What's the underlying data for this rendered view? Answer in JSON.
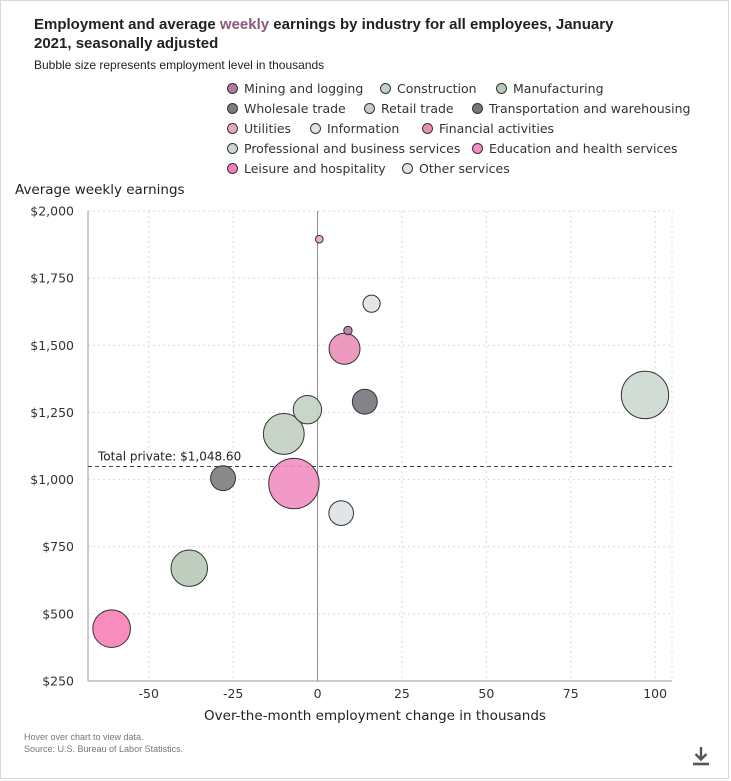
{
  "title_prefix": "Employment and average ",
  "title_accent": "weekly",
  "title_suffix": " earnings by industry for all employees, January 2021, seasonally adjusted",
  "subtitle": "Bubble size represents employment level in thousands",
  "notes": {
    "hover": "Hover over chart to view data.",
    "source": "Source: U.S. Bureau of Labor Statistics."
  },
  "download_icon": "download-icon",
  "chart_data": {
    "type": "scatter",
    "xlabel": "Over-the-month employment change in thousands",
    "ylabel": "Average weekly earnings",
    "xlim": [
      -68,
      105
    ],
    "ylim": [
      250,
      2000
    ],
    "xticks": [
      -50,
      -25,
      0,
      25,
      50,
      75,
      100
    ],
    "yticks": [
      250,
      500,
      750,
      1000,
      1250,
      1500,
      1750,
      2000
    ],
    "xtick_labels": [
      "-50",
      "-25",
      "0",
      "25",
      "50",
      "75",
      "100"
    ],
    "ytick_labels": [
      "$250",
      "$500",
      "$750",
      "$1,000",
      "$1,250",
      "$1,500",
      "$1,750",
      "$2,000"
    ],
    "grid": true,
    "legend_position": "top",
    "reference_line": {
      "y": 1048.6,
      "label": "Total private: $1,048.60"
    },
    "series": [
      {
        "name": "Mining and logging",
        "x": 9,
        "y": 1555,
        "size": 650,
        "color": "#b07aa1"
      },
      {
        "name": "Construction",
        "x": -3,
        "y": 1260,
        "size": 7400,
        "color": "#c2d1c4"
      },
      {
        "name": "Manufacturing",
        "x": -38,
        "y": 670,
        "size": 12200,
        "color": "#b9c9b9"
      },
      {
        "name": "Wholesale trade",
        "x": -28,
        "y": 1005,
        "size": 5700,
        "color": "#7d7d80"
      },
      {
        "name": "Retail trade",
        "x": -10,
        "y": 1170,
        "size": 15300,
        "color": "#c3cfc2"
      },
      {
        "name": "Transportation and warehousing",
        "x": 14,
        "y": 1290,
        "size": 5700,
        "color": "#75757c"
      },
      {
        "name": "Utilities",
        "x": 0.5,
        "y": 1895,
        "size": 540,
        "color": "#e8a5c4"
      },
      {
        "name": "Information",
        "x": 16,
        "y": 1655,
        "size": 2700,
        "color": "#e2e2e2"
      },
      {
        "name": "Financial activities",
        "x": 8,
        "y": 1487,
        "size": 8800,
        "color": "#ea8fb8"
      },
      {
        "name": "Professional and business services",
        "x": 97,
        "y": 1315,
        "size": 20600,
        "color": "#ccd8cf"
      },
      {
        "name": "Education and health services",
        "x": -7,
        "y": 985,
        "size": 23300,
        "color": "#f28ec1"
      },
      {
        "name": "Leisure and hospitality",
        "x": -61,
        "y": 445,
        "size": 13000,
        "color": "#f77fb8"
      },
      {
        "name": "Other services",
        "x": 7,
        "y": 875,
        "size": 5600,
        "color": "#dfe2e6"
      }
    ]
  }
}
